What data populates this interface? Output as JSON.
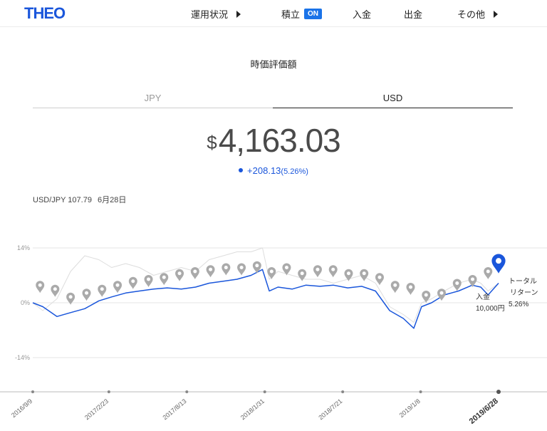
{
  "header": {
    "logo": "THEO",
    "nav": [
      {
        "label": "運用状況",
        "has_arrow": true
      },
      {
        "label": "積立",
        "badge": "ON"
      },
      {
        "label": "入金"
      },
      {
        "label": "出金"
      },
      {
        "label": "その他",
        "has_arrow": true
      }
    ]
  },
  "section_title": "時価評価額",
  "tabs": [
    {
      "label": "JPY",
      "active": false
    },
    {
      "label": "USD",
      "active": true
    }
  ],
  "valuation": {
    "currency_symbol": "$",
    "amount": "4,163.03",
    "change": "+208.13",
    "change_pct": "(5.26%)"
  },
  "fx": {
    "label": "USD/JPY 107.79",
    "date": "6月28日"
  },
  "chart_data": {
    "type": "line",
    "y_tick_labels": [
      "14%",
      "0%",
      "-14%"
    ],
    "ylim": [
      -14,
      14
    ],
    "x_tick_labels": [
      "2016/9/9",
      "2017/2/23",
      "2017/8/13",
      "2018/1/31",
      "2018/7/21",
      "2019/1/8",
      "2019/6/28"
    ],
    "x_ticks": [
      "2016-09-09",
      "2017-02-23",
      "2017-08-13",
      "2018-01-31",
      "2018-07-21",
      "2019-01-08",
      "2019-06-28"
    ],
    "highlighted_tick": "2019/6/28",
    "series": [
      {
        "role": "portfolio",
        "color": "#1a56db",
        "x": [
          "2016-09-09",
          "2016-10-01",
          "2016-11-01",
          "2016-12-01",
          "2017-01-01",
          "2017-02-01",
          "2017-03-01",
          "2017-04-01",
          "2017-05-01",
          "2017-06-01",
          "2017-07-01",
          "2017-08-01",
          "2017-09-01",
          "2017-10-01",
          "2017-11-01",
          "2017-12-01",
          "2018-01-01",
          "2018-01-26",
          "2018-02-10",
          "2018-03-01",
          "2018-04-01",
          "2018-05-01",
          "2018-06-01",
          "2018-07-01",
          "2018-08-01",
          "2018-09-01",
          "2018-10-01",
          "2018-11-01",
          "2018-12-01",
          "2018-12-24",
          "2019-01-10",
          "2019-02-01",
          "2019-03-01",
          "2019-04-01",
          "2019-05-01",
          "2019-05-20",
          "2019-06-05",
          "2019-06-28"
        ],
        "values": [
          0,
          -1,
          -3.5,
          -2.5,
          -1.5,
          0.5,
          1.5,
          2.5,
          3,
          3.5,
          3.8,
          3.5,
          4,
          5,
          5.5,
          6,
          7,
          8.5,
          3,
          4,
          3.5,
          4.5,
          4.2,
          4.5,
          3.8,
          4.2,
          3,
          -2,
          -4,
          -6.5,
          -1,
          0,
          2,
          3,
          4.5,
          4,
          2,
          5
        ]
      },
      {
        "role": "benchmark",
        "color": "#dddddd",
        "x": [
          "2016-09-09",
          "2016-10-01",
          "2016-11-01",
          "2016-12-01",
          "2017-01-01",
          "2017-02-01",
          "2017-03-01",
          "2017-04-01",
          "2017-05-01",
          "2017-06-01",
          "2017-07-01",
          "2017-08-01",
          "2017-09-01",
          "2017-10-01",
          "2017-11-01",
          "2017-12-01",
          "2018-01-01",
          "2018-01-26",
          "2018-02-10",
          "2018-03-01",
          "2018-04-01",
          "2018-05-01",
          "2018-06-01",
          "2018-07-01",
          "2018-08-01",
          "2018-09-01",
          "2018-10-01",
          "2018-11-01",
          "2018-12-01",
          "2018-12-24",
          "2019-01-10",
          "2019-02-01",
          "2019-03-01",
          "2019-04-01",
          "2019-05-01",
          "2019-05-20",
          "2019-06-05",
          "2019-06-28"
        ],
        "values": [
          0,
          -2,
          1,
          8,
          12,
          11,
          9,
          10,
          9,
          7,
          8,
          9,
          8,
          11,
          12,
          13,
          13,
          14,
          6,
          8,
          7,
          6,
          6,
          5,
          6,
          7,
          5,
          -1,
          -3,
          -5,
          0,
          1,
          3,
          5,
          6,
          5,
          3,
          5
        ]
      }
    ],
    "markers": {
      "color": "#aaaaaa",
      "x": [
        "2016-09-25",
        "2016-10-28",
        "2016-12-01",
        "2017-01-05",
        "2017-02-08",
        "2017-03-14",
        "2017-04-17",
        "2017-05-21",
        "2017-06-24",
        "2017-07-28",
        "2017-08-31",
        "2017-10-04",
        "2017-11-07",
        "2017-12-11",
        "2018-01-14",
        "2018-02-15",
        "2018-03-20",
        "2018-04-23",
        "2018-05-27",
        "2018-06-30",
        "2018-08-03",
        "2018-09-06",
        "2018-10-10",
        "2018-11-13",
        "2018-12-17",
        "2019-01-20",
        "2019-02-23",
        "2019-03-29",
        "2019-05-02",
        "2019-06-05"
      ],
      "values": [
        2.5,
        1.5,
        -0.5,
        0.5,
        1.5,
        2.5,
        3.5,
        4,
        4.5,
        5.5,
        6,
        6.5,
        7,
        7,
        7.5,
        6,
        7,
        5.5,
        6.5,
        6.5,
        5.5,
        5.5,
        4.5,
        2.5,
        2,
        0,
        0.5,
        3,
        4,
        6
      ],
      "final_marker": {
        "x": "2019-06-28",
        "value": 7.5,
        "color": "#1a56db"
      }
    },
    "annotations": {
      "deposit": {
        "label": "入金",
        "amount": "10,000円"
      },
      "total_return": {
        "line1": "トータル",
        "line2": "リターン",
        "value": "5.26%"
      }
    }
  }
}
